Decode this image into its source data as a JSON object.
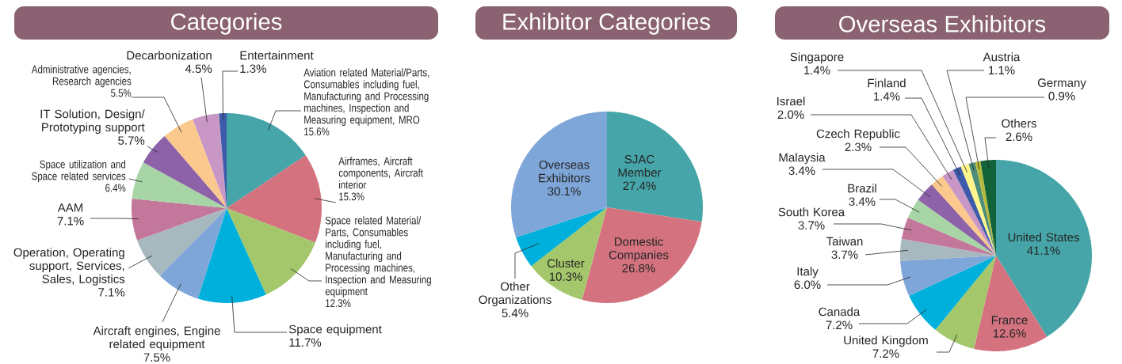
{
  "chart_data": [
    {
      "type": "pie",
      "title": "Categories",
      "categories": [
        "Aviation related Material/Parts, Consumables including fuel, Manufacturing and Processing machines, Inspection and Measuring equipment, MRO",
        "Airframes, Aircraft components, Aircraft interior",
        "Space related Material/ Parts, Consumables including fuel, Manufacturing and Processing machines, Inspection and Measuring equipment",
        "Space equipment",
        "Aircraft engines, Engine related equipment",
        "Operation, Operating support, Services, Sales, Logistics",
        "AAM",
        "Space utilization and Space related services",
        "IT Solution, Design/ Prototyping support",
        "Administrative agencies, Research agencies",
        "Decarbonization",
        "Entertainment"
      ],
      "values": [
        15.6,
        15.3,
        12.3,
        11.7,
        7.5,
        7.1,
        7.1,
        6.4,
        5.7,
        5.5,
        4.5,
        1.3
      ],
      "value_labels": [
        "15.6%",
        "15.3%",
        "12.3%",
        "11.7%",
        "7.5%",
        "7.1%",
        "7.1%",
        "6.4%",
        "5.7%",
        "5.5%",
        "4.5%",
        "1.3%"
      ],
      "colors": [
        "#45a5a8",
        "#d4737f",
        "#a3c76a",
        "#00b0dc",
        "#7ea6d8",
        "#a8b8bf",
        "#c3779b",
        "#a8d5a6",
        "#8e62a8",
        "#fbc98d",
        "#c997c5",
        "#3e5baa"
      ]
    },
    {
      "type": "pie",
      "title": "Exhibitor Categories",
      "categories": [
        "SJAC Member",
        "Domestic Companies",
        "Cluster",
        "Other Organizations",
        "Overseas Exhibitors"
      ],
      "values": [
        27.4,
        26.8,
        10.3,
        5.4,
        30.1
      ],
      "value_labels": [
        "27.4%",
        "26.8%",
        "10.3%",
        "5.4%",
        "30.1%"
      ],
      "colors": [
        "#45a5a8",
        "#d4737f",
        "#a3c76a",
        "#00b0dc",
        "#7ea6d8"
      ]
    },
    {
      "type": "pie",
      "title": "Overseas Exhibitors",
      "categories": [
        "United States",
        "France",
        "United Kingdom",
        "Canada",
        "Italy",
        "Taiwan",
        "South Korea",
        "Brazil",
        "Malaysia",
        "Czech Republic",
        "Israel",
        "Finland",
        "Singapore",
        "Austria",
        "Germany",
        "Others"
      ],
      "values": [
        41.1,
        12.6,
        7.2,
        7.2,
        6.0,
        3.7,
        3.7,
        3.4,
        3.4,
        2.3,
        2.0,
        1.4,
        1.4,
        1.1,
        0.9,
        2.6
      ],
      "value_labels": [
        "41.1%",
        "12.6%",
        "7.2%",
        "7.2%",
        "6.0%",
        "3.7%",
        "3.7%",
        "3.4%",
        "3.4%",
        "2.3%",
        "2.0%",
        "1.4%",
        "1.4%",
        "1.1%",
        "0.9%",
        "2.6%"
      ],
      "colors": [
        "#45a5a8",
        "#d4737f",
        "#a3c76a",
        "#00b0dc",
        "#7ea6d8",
        "#a8b8bf",
        "#c3779b",
        "#a8d5a6",
        "#8e62a8",
        "#fbc98d",
        "#c997c5",
        "#3e5baa",
        "#fff58a",
        "#4c8c7a",
        "#b5b83a",
        "#12633a"
      ]
    }
  ]
}
